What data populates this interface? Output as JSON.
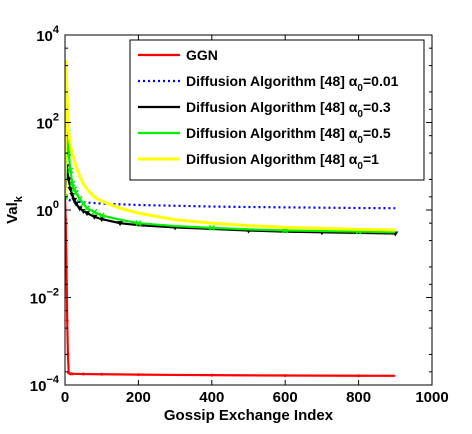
{
  "chart_data": {
    "type": "line",
    "xlabel": "Gossip Exchange Index",
    "ylabel": "Val",
    "ylabel_sub": "k",
    "xlim": [
      0,
      1000
    ],
    "ylim": [
      0.0001,
      10000
    ],
    "yscale": "log",
    "x_ticks": [
      0,
      200,
      400,
      600,
      800,
      1000
    ],
    "x_tick_labels": [
      "0",
      "200",
      "400",
      "600",
      "800",
      "1000"
    ],
    "y_ticks": [
      0.0001,
      0.01,
      1,
      100,
      10000
    ],
    "y_tick_labels": [
      {
        "base": "10",
        "exp": "−4"
      },
      {
        "base": "10",
        "exp": "−2"
      },
      {
        "base": "10",
        "exp": "0"
      },
      {
        "base": "10",
        "exp": "2"
      },
      {
        "base": "10",
        "exp": "4"
      }
    ],
    "legend_position": "top-right",
    "series": [
      {
        "name": "GGN",
        "label_main": "GGN",
        "label_sub": "",
        "label_tail": "",
        "color": "#ff0000",
        "dash": "",
        "marker": "dot",
        "x": [
          0,
          2,
          4,
          6,
          8,
          10,
          15,
          20,
          50,
          100,
          200,
          300,
          400,
          500,
          600,
          700,
          800,
          900
        ],
        "y": [
          2,
          0.6,
          0.05,
          0.003,
          0.0005,
          0.00019,
          0.00018,
          0.00018,
          0.000178,
          0.000176,
          0.000173,
          0.00017,
          0.000168,
          0.000166,
          0.000165,
          0.000164,
          0.000163,
          0.000162
        ]
      },
      {
        "name": "Diffusion Algorithm [48] α0=0.01",
        "label_main": "Diffusion Algorithm [48] α",
        "label_sub": "0",
        "label_tail": "=0.01",
        "color": "#0000ff",
        "dash": "2,3",
        "marker": "none",
        "x": [
          0,
          5,
          10,
          20,
          30,
          50,
          100,
          200,
          300,
          400,
          500,
          600,
          700,
          800,
          900
        ],
        "y": [
          2.0,
          1.8,
          1.7,
          1.6,
          1.55,
          1.5,
          1.4,
          1.3,
          1.25,
          1.2,
          1.17,
          1.15,
          1.13,
          1.11,
          1.1
        ]
      },
      {
        "name": "Diffusion Algorithm [48] α0=0.3",
        "label_main": "Diffusion Algorithm [48] α",
        "label_sub": "0",
        "label_tail": "=0.3",
        "color": "#000000",
        "dash": "",
        "marker": "triangle",
        "x": [
          0,
          5,
          10,
          15,
          20,
          25,
          30,
          40,
          50,
          60,
          80,
          100,
          150,
          200,
          300,
          400,
          500,
          600,
          700,
          800,
          900
        ],
        "y": [
          2,
          10,
          5,
          3,
          2.2,
          1.7,
          1.4,
          1.1,
          0.95,
          0.85,
          0.7,
          0.62,
          0.5,
          0.45,
          0.4,
          0.37,
          0.34,
          0.32,
          0.31,
          0.3,
          0.29
        ]
      },
      {
        "name": "Diffusion Algorithm [48] α0=0.5",
        "label_main": "Diffusion Algorithm [48] α",
        "label_sub": "0",
        "label_tail": "=0.5",
        "color": "#00ee00",
        "dash": "",
        "marker": "x",
        "x": [
          0,
          5,
          8,
          10,
          15,
          20,
          25,
          30,
          40,
          50,
          60,
          80,
          100,
          150,
          200,
          300,
          400,
          500,
          600,
          700,
          800,
          900
        ],
        "y": [
          2,
          30,
          60,
          20,
          8,
          4,
          3,
          2.5,
          1.8,
          1.4,
          1.1,
          0.9,
          0.75,
          0.6,
          0.5,
          0.43,
          0.39,
          0.36,
          0.34,
          0.33,
          0.32,
          0.31
        ]
      },
      {
        "name": "Diffusion Algorithm [48] α0=1",
        "label_main": "Diffusion Algorithm [48] α",
        "label_sub": "0",
        "label_tail": "=1",
        "color": "#ffff00",
        "dash": "",
        "marker": "none",
        "x": [
          0,
          3,
          5,
          8,
          10,
          15,
          20,
          30,
          40,
          50,
          60,
          80,
          100,
          150,
          200,
          300,
          400,
          500,
          600,
          700,
          800,
          900
        ],
        "y": [
          2,
          2500,
          600,
          150,
          60,
          30,
          20,
          10,
          6,
          4,
          3,
          2,
          1.6,
          1.1,
          0.85,
          0.6,
          0.5,
          0.44,
          0.4,
          0.38,
          0.36,
          0.35
        ]
      }
    ]
  }
}
